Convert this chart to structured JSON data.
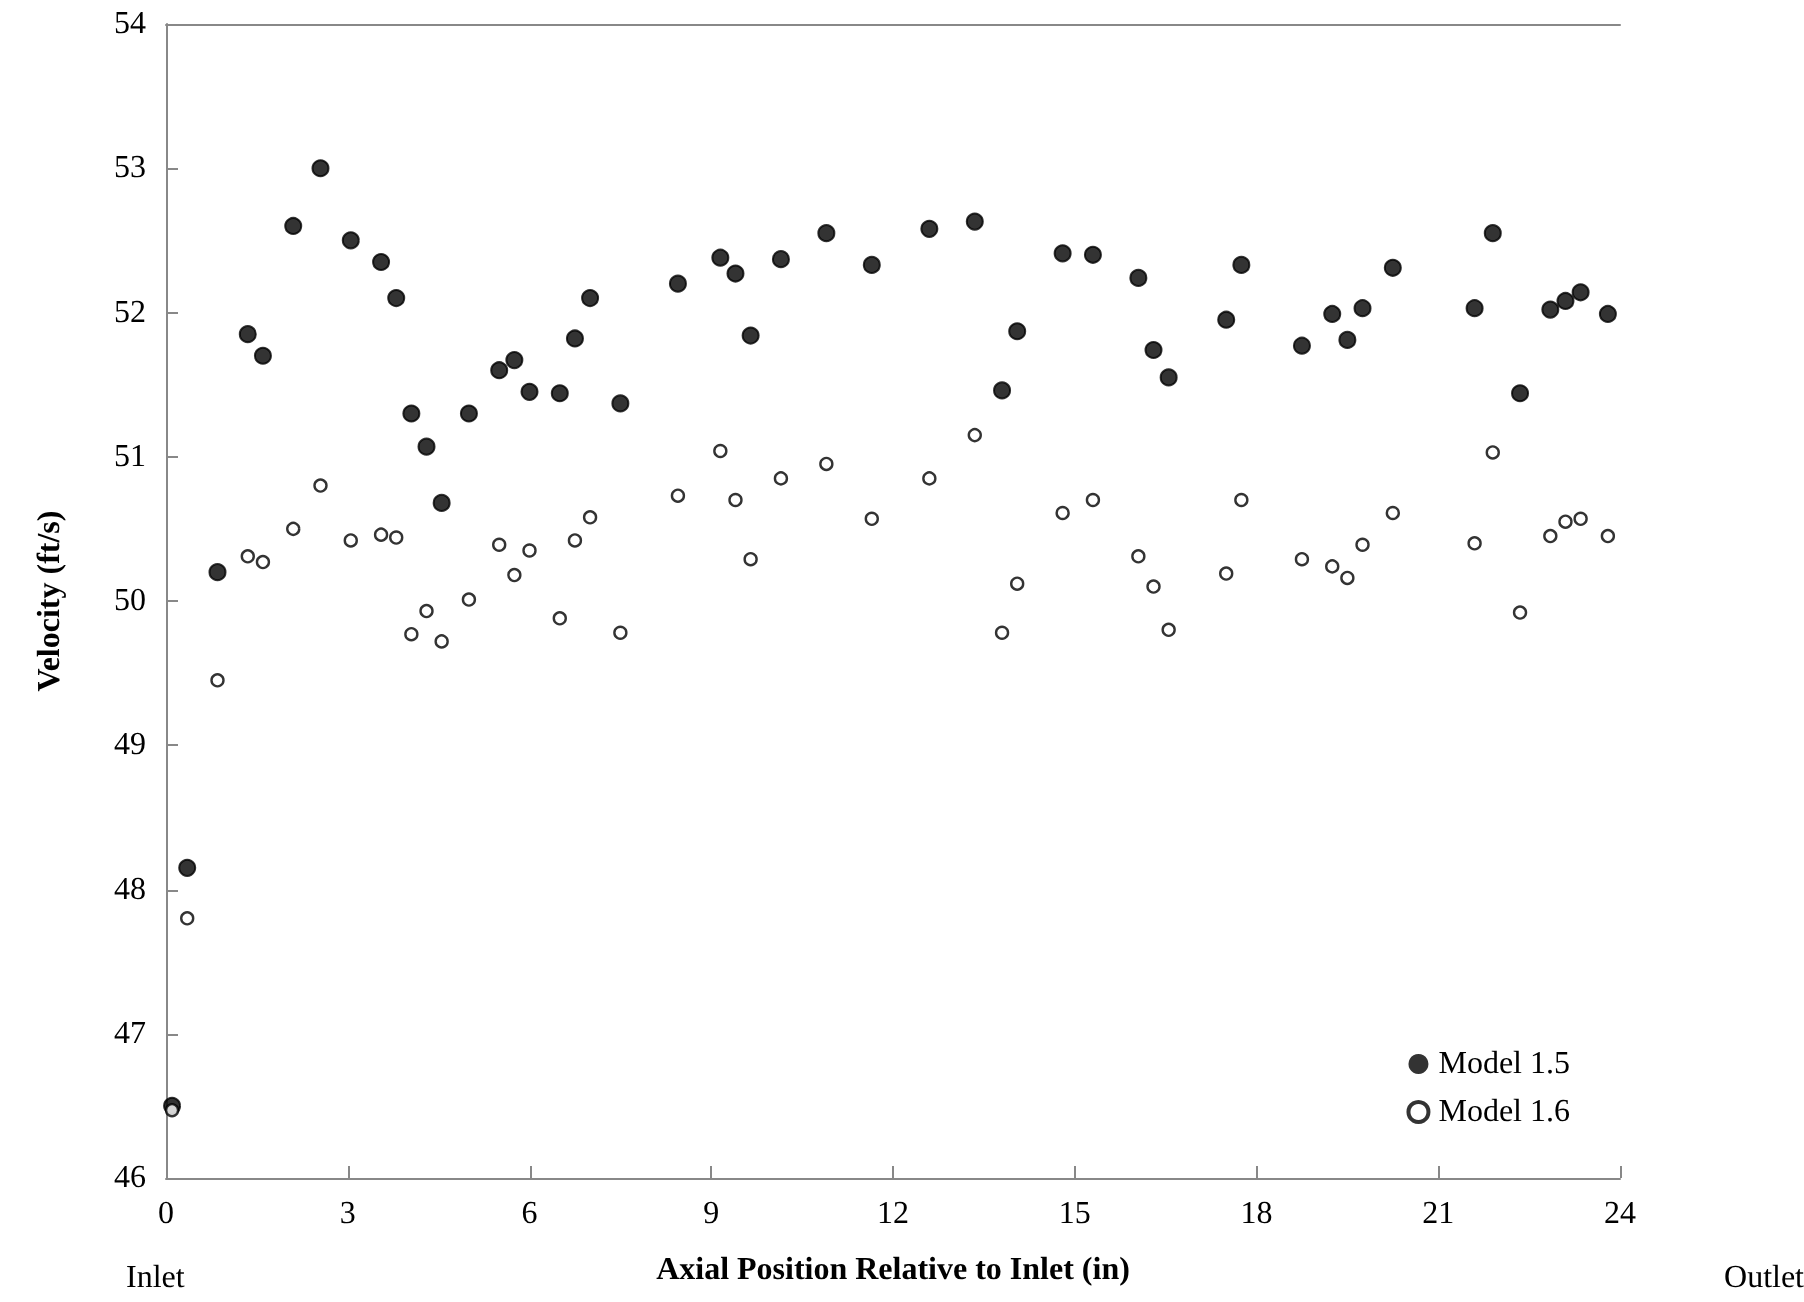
{
  "chart_data": {
    "type": "scatter",
    "xlabel": "Axial Position Relative to Inlet (in)",
    "ylabel": "Velocity (ft/s)",
    "annotations": [
      "Inlet",
      "Outlet"
    ],
    "x": [
      0.1,
      0.35,
      0.85,
      1.35,
      1.6,
      2.1,
      2.55,
      3.05,
      3.55,
      3.8,
      4.05,
      4.3,
      4.55,
      5.0,
      5.5,
      5.75,
      6.0,
      6.5,
      6.75,
      7.0,
      7.5,
      8.45,
      9.15,
      9.4,
      9.65,
      10.15,
      10.9,
      11.65,
      12.6,
      13.35,
      13.8,
      14.05,
      14.8,
      15.3,
      16.05,
      16.3,
      16.55,
      17.5,
      17.75,
      18.75,
      19.25,
      19.5,
      19.75,
      20.25,
      21.6,
      21.9,
      22.35,
      22.85,
      23.1,
      23.35,
      23.8
    ],
    "series": [
      {
        "name": "Model 1.5",
        "color": "#000000",
        "values": [
          46.5,
          48.15,
          50.2,
          51.85,
          51.7,
          52.6,
          53.0,
          52.5,
          52.35,
          52.1,
          51.3,
          51.07,
          50.68,
          51.3,
          51.6,
          51.67,
          51.45,
          51.44,
          51.82,
          52.1,
          51.37,
          52.2,
          52.38,
          52.27,
          51.84,
          52.37,
          52.55,
          52.33,
          52.58,
          52.63,
          51.46,
          51.87,
          52.41,
          52.4,
          52.24,
          51.74,
          51.55,
          51.95,
          52.33,
          51.77,
          51.99,
          51.81,
          52.03,
          52.31,
          52.03,
          52.55,
          51.44,
          52.02,
          52.08,
          52.14,
          51.99
        ]
      },
      {
        "name": "Model 1.6",
        "color": "#000000",
        "values": [
          46.47,
          47.8,
          49.45,
          50.31,
          50.27,
          50.5,
          50.8,
          50.42,
          50.46,
          50.44,
          49.77,
          49.93,
          49.72,
          50.01,
          50.39,
          50.18,
          50.35,
          49.88,
          50.42,
          50.58,
          49.78,
          50.73,
          51.04,
          50.7,
          50.29,
          50.85,
          50.95,
          50.57,
          50.85,
          51.15,
          49.78,
          50.12,
          50.61,
          50.7,
          50.31,
          50.1,
          49.8,
          50.19,
          50.7,
          50.29,
          50.24,
          50.16,
          50.39,
          50.61,
          50.4,
          51.03,
          49.92,
          50.45,
          50.55,
          50.57,
          50.45
        ]
      }
    ],
    "xlim": [
      0,
      24
    ],
    "xticks": [
      0,
      3,
      6,
      9,
      12,
      15,
      18,
      21,
      24
    ],
    "ylim": [
      46,
      54
    ],
    "yticks": [
      46,
      47,
      48,
      49,
      50,
      51,
      52,
      53,
      54
    ],
    "grid": false,
    "legend": "bottom right",
    "marker": "circle"
  }
}
